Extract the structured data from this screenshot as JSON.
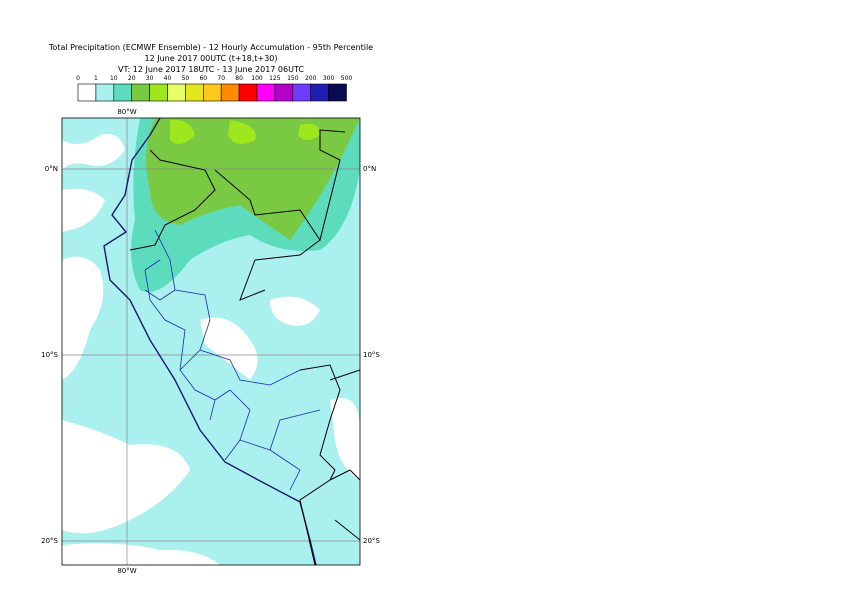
{
  "header": {
    "lines": [
      "Total Precipitation (ECMWF Ensemble) - 12 Hourly Accumulation - 95th Percentile",
      "12 June 2017 00UTC (t+18,t+30)",
      "VT: 12 June 2017 18UTC - 13 June 2017 06UTC"
    ]
  },
  "legend": {
    "labels": [
      "0",
      "1",
      "10",
      "20",
      "30",
      "40",
      "50",
      "60",
      "70",
      "80",
      "100",
      "125",
      "150",
      "200",
      "300",
      "500"
    ],
    "colors": [
      "#ffffff",
      "#aaf0ef",
      "#5cdcbc",
      "#7ac943",
      "#9ee61e",
      "#e6ff66",
      "#e6e61e",
      "#ffc81e",
      "#ff8c00",
      "#ff0000",
      "#ff00ff",
      "#b400c8",
      "#6e3cff",
      "#1e1eb4",
      "#0a0a50"
    ]
  },
  "map": {
    "lon_label": "80°W",
    "lat_labels": [
      "0°N",
      "10°S",
      "20°S"
    ]
  }
}
